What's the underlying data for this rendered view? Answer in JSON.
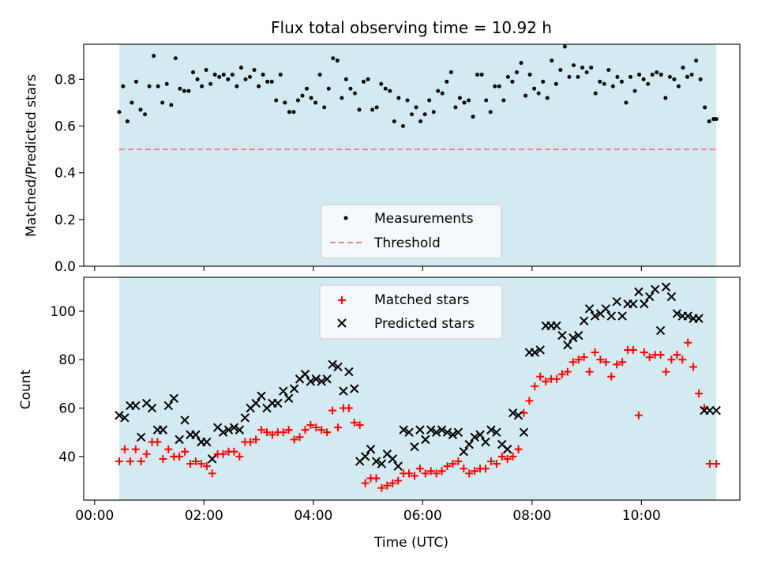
{
  "chart_data": {
    "title": "Flux total observing time = 10.92 h",
    "xlabel": "Time (UTC)",
    "x_ticks": [
      "00:00",
      "02:00",
      "04:00",
      "06:00",
      "08:00",
      "10:00"
    ],
    "x_tick_hours": [
      0,
      2,
      4,
      6,
      8,
      10
    ],
    "observing_window_hours": [
      0.45,
      11.37
    ],
    "colors": {
      "window": "#d4eaf1",
      "matched": "#ff0000",
      "predicted": "#000000",
      "threshold": "#f08080",
      "measurement": "#000000"
    },
    "panels": [
      {
        "type": "scatter",
        "ylabel": "Matched/Predicted stars",
        "ylim": [
          0,
          0.95
        ],
        "y_ticks": [
          "0.0",
          "0.2",
          "0.4",
          "0.6",
          "0.8"
        ],
        "y_tick_values": [
          0,
          0.2,
          0.4,
          0.6,
          0.8
        ],
        "legend": {
          "placement": "lower-center",
          "entries": [
            "Measurements",
            "Threshold"
          ]
        },
        "threshold": 0.5,
        "series": [
          {
            "name": "Measurements",
            "x": [
              0.45,
              0.52,
              0.6,
              0.68,
              0.76,
              0.84,
              0.92,
              1.0,
              1.08,
              1.16,
              1.24,
              1.32,
              1.4,
              1.48,
              1.56,
              1.64,
              1.72,
              1.8,
              1.88,
              1.96,
              2.04,
              2.12,
              2.2,
              2.28,
              2.36,
              2.44,
              2.52,
              2.6,
              2.68,
              2.76,
              2.84,
              2.92,
              3.0,
              3.08,
              3.16,
              3.24,
              3.32,
              3.4,
              3.48,
              3.56,
              3.64,
              3.72,
              3.8,
              3.88,
              3.96,
              4.04,
              4.12,
              4.2,
              4.28,
              4.36,
              4.44,
              4.52,
              4.6,
              4.68,
              4.76,
              4.84,
              4.92,
              5.0,
              5.08,
              5.16,
              5.24,
              5.32,
              5.4,
              5.48,
              5.56,
              5.64,
              5.72,
              5.8,
              5.88,
              5.96,
              6.04,
              6.12,
              6.2,
              6.28,
              6.36,
              6.44,
              6.52,
              6.6,
              6.68,
              6.76,
              6.84,
              6.92,
              7.0,
              7.08,
              7.16,
              7.24,
              7.32,
              7.4,
              7.48,
              7.56,
              7.64,
              7.72,
              7.8,
              7.88,
              7.96,
              8.04,
              8.12,
              8.2,
              8.28,
              8.36,
              8.44,
              8.52,
              8.6,
              8.68,
              8.76,
              8.84,
              8.92,
              9.0,
              9.08,
              9.16,
              9.24,
              9.32,
              9.4,
              9.48,
              9.56,
              9.64,
              9.72,
              9.8,
              9.88,
              9.96,
              10.04,
              10.12,
              10.2,
              10.28,
              10.36,
              10.44,
              10.52,
              10.6,
              10.68,
              10.76,
              10.84,
              10.92,
              11.0,
              11.08,
              11.16,
              11.24,
              11.32,
              11.37
            ],
            "y": [
              0.66,
              0.77,
              0.62,
              0.7,
              0.79,
              0.67,
              0.65,
              0.77,
              0.9,
              0.77,
              0.7,
              0.78,
              0.69,
              0.89,
              0.76,
              0.75,
              0.75,
              0.83,
              0.8,
              0.77,
              0.84,
              0.78,
              0.82,
              0.81,
              0.82,
              0.8,
              0.82,
              0.77,
              0.85,
              0.8,
              0.81,
              0.84,
              0.77,
              0.82,
              0.79,
              0.79,
              0.71,
              0.82,
              0.7,
              0.66,
              0.66,
              0.71,
              0.73,
              0.76,
              0.72,
              0.7,
              0.82,
              0.68,
              0.76,
              0.89,
              0.88,
              0.72,
              0.8,
              0.76,
              0.74,
              0.67,
              0.79,
              0.8,
              0.67,
              0.68,
              0.78,
              0.76,
              0.75,
              0.62,
              0.72,
              0.6,
              0.71,
              0.65,
              0.68,
              0.62,
              0.65,
              0.71,
              0.66,
              0.75,
              0.74,
              0.79,
              0.83,
              0.68,
              0.72,
              0.7,
              0.71,
              0.64,
              0.82,
              0.82,
              0.71,
              0.66,
              0.77,
              0.77,
              0.71,
              0.81,
              0.79,
              0.83,
              0.87,
              0.73,
              0.82,
              0.76,
              0.74,
              0.79,
              0.72,
              0.88,
              0.78,
              0.84,
              0.94,
              0.81,
              0.86,
              0.81,
              0.85,
              0.83,
              0.85,
              0.74,
              0.79,
              0.78,
              0.84,
              0.77,
              0.81,
              0.79,
              0.7,
              0.81,
              0.75,
              0.82,
              0.8,
              0.78,
              0.82,
              0.83,
              0.82,
              0.72,
              0.81,
              0.8,
              0.77,
              0.85,
              0.81,
              0.82,
              0.88,
              0.8,
              0.68,
              0.62,
              0.63,
              0.63
            ]
          }
        ]
      },
      {
        "type": "scatter",
        "ylabel": "Count",
        "ylim": [
          22,
          114
        ],
        "y_ticks": [
          "40",
          "60",
          "80",
          "100"
        ],
        "y_tick_values": [
          40,
          60,
          80,
          100
        ],
        "legend": {
          "placement": "top-center",
          "entries": [
            "Matched stars",
            "Predicted stars"
          ]
        },
        "series": [
          {
            "name": "Matched stars",
            "x": [
              0.45,
              0.55,
              0.65,
              0.75,
              0.85,
              0.95,
              1.05,
              1.15,
              1.25,
              1.35,
              1.45,
              1.55,
              1.65,
              1.75,
              1.85,
              1.95,
              2.05,
              2.15,
              2.25,
              2.35,
              2.45,
              2.55,
              2.65,
              2.75,
              2.85,
              2.95,
              3.05,
              3.15,
              3.25,
              3.35,
              3.45,
              3.55,
              3.65,
              3.75,
              3.85,
              3.95,
              4.05,
              4.15,
              4.25,
              4.35,
              4.45,
              4.55,
              4.65,
              4.75,
              4.85,
              4.95,
              5.05,
              5.15,
              5.25,
              5.35,
              5.45,
              5.55,
              5.65,
              5.75,
              5.85,
              5.95,
              6.05,
              6.15,
              6.25,
              6.35,
              6.45,
              6.55,
              6.65,
              6.75,
              6.85,
              6.95,
              7.05,
              7.15,
              7.25,
              7.35,
              7.45,
              7.55,
              7.65,
              7.75,
              7.85,
              7.95,
              8.05,
              8.15,
              8.25,
              8.35,
              8.45,
              8.55,
              8.65,
              8.75,
              8.85,
              8.95,
              9.05,
              9.15,
              9.25,
              9.35,
              9.45,
              9.55,
              9.65,
              9.75,
              9.85,
              9.95,
              10.05,
              10.15,
              10.25,
              10.35,
              10.45,
              10.55,
              10.65,
              10.75,
              10.85,
              10.95,
              11.05,
              11.15,
              11.25,
              11.37
            ],
            "y": [
              38,
              43,
              38,
              43,
              38,
              41,
              46,
              46,
              39,
              43,
              40,
              40,
              42,
              37,
              38,
              37,
              36,
              33,
              41,
              41,
              42,
              42,
              40,
              46,
              46,
              47,
              51,
              50,
              49,
              50,
              50,
              51,
              47,
              48,
              51,
              53,
              52,
              51,
              50,
              59,
              52,
              60,
              60,
              54,
              53,
              29,
              31,
              31,
              27,
              28,
              29,
              30,
              33,
              33,
              32,
              35,
              33,
              34,
              33,
              34,
              36,
              37,
              38,
              35,
              33,
              34,
              35,
              35,
              38,
              37,
              40,
              39,
              40,
              43,
              58,
              63,
              69,
              73,
              71,
              72,
              72,
              74,
              75,
              79,
              80,
              81,
              75,
              83,
              80,
              79,
              73,
              78,
              79,
              84,
              84,
              57,
              83,
              81,
              82,
              82,
              75,
              80,
              82,
              80,
              87,
              77,
              66,
              60,
              37,
              37
            ]
          },
          {
            "name": "Predicted stars",
            "x": [
              0.45,
              0.55,
              0.65,
              0.75,
              0.85,
              0.95,
              1.05,
              1.15,
              1.25,
              1.35,
              1.45,
              1.55,
              1.65,
              1.75,
              1.85,
              1.95,
              2.05,
              2.15,
              2.25,
              2.35,
              2.45,
              2.55,
              2.65,
              2.75,
              2.85,
              2.95,
              3.05,
              3.15,
              3.25,
              3.35,
              3.45,
              3.55,
              3.65,
              3.75,
              3.85,
              3.95,
              4.05,
              4.15,
              4.25,
              4.35,
              4.45,
              4.55,
              4.65,
              4.75,
              4.85,
              4.95,
              5.05,
              5.15,
              5.25,
              5.35,
              5.45,
              5.55,
              5.65,
              5.75,
              5.85,
              5.95,
              6.05,
              6.15,
              6.25,
              6.35,
              6.45,
              6.55,
              6.65,
              6.75,
              6.85,
              6.95,
              7.05,
              7.15,
              7.25,
              7.35,
              7.45,
              7.55,
              7.65,
              7.75,
              7.85,
              7.95,
              8.05,
              8.15,
              8.25,
              8.35,
              8.45,
              8.55,
              8.65,
              8.75,
              8.85,
              8.95,
              9.05,
              9.15,
              9.25,
              9.35,
              9.45,
              9.55,
              9.65,
              9.75,
              9.85,
              9.95,
              10.05,
              10.15,
              10.25,
              10.35,
              10.45,
              10.55,
              10.65,
              10.75,
              10.85,
              10.95,
              11.05,
              11.15,
              11.25,
              11.37
            ],
            "y": [
              57,
              56,
              61,
              61,
              48,
              62,
              60,
              51,
              51,
              61,
              64,
              47,
              55,
              49,
              49,
              46,
              46,
              39,
              52,
              50,
              51,
              52,
              51,
              56,
              60,
              62,
              65,
              60,
              62,
              62,
              67,
              64,
              68,
              72,
              74,
              71,
              72,
              71,
              72,
              78,
              77,
              67,
              75,
              68,
              38,
              40,
              43,
              38,
              37,
              41,
              39,
              36,
              51,
              50,
              44,
              51,
              47,
              51,
              50,
              51,
              50,
              49,
              50,
              42,
              45,
              48,
              49,
              46,
              51,
              50,
              45,
              43,
              58,
              57,
              50,
              83,
              83,
              84,
              94,
              94,
              94,
              90,
              86,
              89,
              90,
              96,
              101,
              98,
              99,
              101,
              98,
              104,
              98,
              103,
              103,
              108,
              103,
              106,
              109,
              92,
              110,
              106,
              99,
              98,
              98,
              97,
              97,
              59,
              59,
              59
            ]
          }
        ]
      }
    ]
  }
}
